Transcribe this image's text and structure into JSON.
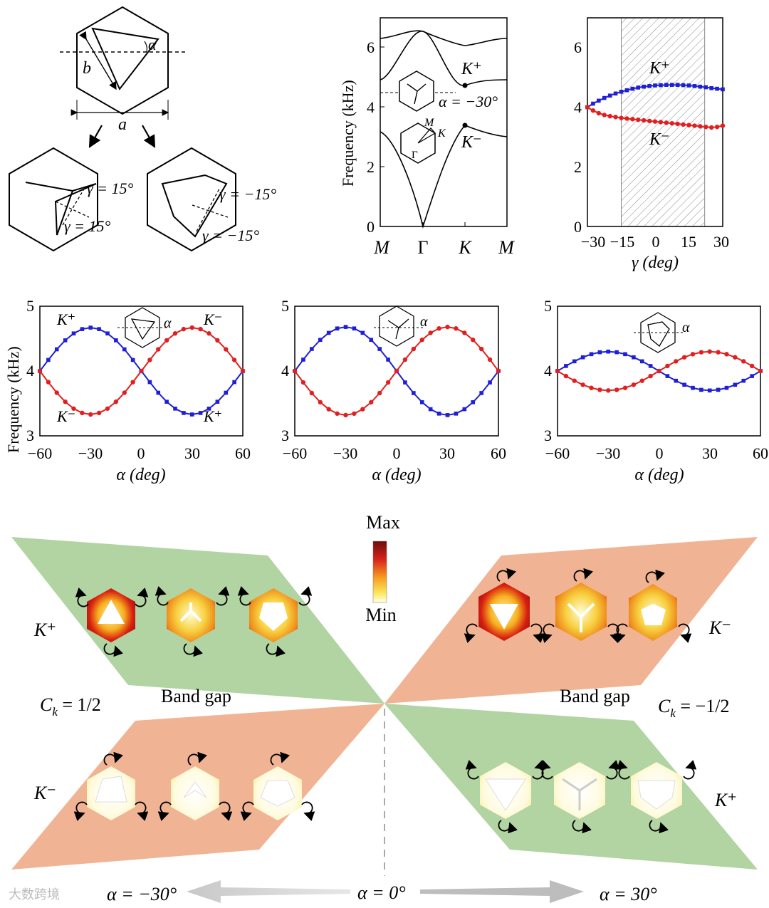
{
  "colors": {
    "blue": "#1f1fd6",
    "red": "#e02020",
    "green": "#a9cf98",
    "salmon": "#eeac88",
    "hatch": "#888888"
  },
  "geometry_panel": {
    "labels": {
      "alpha": "α",
      "b": "b",
      "a": "a"
    },
    "left_child": {
      "gamma_top": "γ = 15°",
      "gamma_bottom": "γ = 15°"
    },
    "right_child": {
      "gamma_top": "γ = −15°",
      "gamma_bottom": "γ = −15°"
    }
  },
  "band_chart": {
    "ylabel": "Frequency (kHz)",
    "xticks": [
      "M",
      "Γ",
      "K",
      "M"
    ],
    "yticks": [
      "0",
      "2",
      "4",
      "6"
    ],
    "kplus": "K⁺",
    "kminus": "K⁻",
    "alpha_note": "α = −30°",
    "bz_labels": {
      "M": "M",
      "K": "K",
      "Gamma": "Γ"
    }
  },
  "chart_data": [
    {
      "type": "line",
      "id": "gamma_chart",
      "xlabel": "γ (deg)",
      "ylabel": "",
      "xlim": [
        -30,
        30
      ],
      "ylim": [
        0,
        7
      ],
      "xticks": [
        "−30",
        "−15",
        "0",
        "15",
        "30"
      ],
      "yticks": [
        "0",
        "2",
        "4",
        "6"
      ],
      "shaded_range": [
        -15,
        22
      ],
      "labels": {
        "upper": "K⁺",
        "lower": "K⁻"
      },
      "series": [
        {
          "name": "K⁺",
          "color": "blue",
          "x": [
            -30,
            -27.5,
            -25,
            -22.5,
            -20,
            -17.5,
            -15,
            -12.5,
            -10,
            -7.5,
            -5,
            -2.5,
            0,
            2.5,
            5,
            7.5,
            10,
            12.5,
            15,
            17.5,
            20,
            22.5,
            25,
            27.5,
            30
          ],
          "values": [
            4.0,
            4.12,
            4.22,
            4.31,
            4.39,
            4.46,
            4.52,
            4.57,
            4.62,
            4.66,
            4.69,
            4.71,
            4.73,
            4.74,
            4.75,
            4.75,
            4.75,
            4.74,
            4.73,
            4.71,
            4.69,
            4.67,
            4.64,
            4.62,
            4.6
          ]
        },
        {
          "name": "K⁻",
          "color": "red",
          "x": [
            -30,
            -27.5,
            -25,
            -22.5,
            -20,
            -17.5,
            -15,
            -12.5,
            -10,
            -7.5,
            -5,
            -2.5,
            0,
            2.5,
            5,
            7.5,
            10,
            12.5,
            15,
            17.5,
            20,
            22.5,
            25,
            27.5,
            30
          ],
          "values": [
            4.0,
            3.89,
            3.8,
            3.74,
            3.7,
            3.67,
            3.64,
            3.62,
            3.6,
            3.58,
            3.56,
            3.54,
            3.52,
            3.5,
            3.48,
            3.46,
            3.44,
            3.42,
            3.4,
            3.38,
            3.36,
            3.34,
            3.32,
            3.34,
            3.38
          ]
        }
      ]
    },
    {
      "type": "line",
      "id": "alpha_chart_1",
      "xlabel": "α (deg)",
      "ylabel": "Frequency (kHz)",
      "xlim": [
        -60,
        60
      ],
      "ylim": [
        3,
        5
      ],
      "xticks": [
        "−60",
        "−30",
        "0",
        "30",
        "60"
      ],
      "yticks": [
        "3",
        "4",
        "5"
      ],
      "amplitude": 0.67,
      "labels": {
        "tl": "K⁺",
        "tr": "K⁻",
        "bl": "K⁻",
        "br": "K⁺",
        "alpha": "α"
      },
      "series": [
        {
          "name": "blue",
          "color": "blue",
          "x": [
            -60,
            -55,
            -50,
            -45,
            -40,
            -35,
            -30,
            -25,
            -20,
            -15,
            -10,
            -5,
            0,
            5,
            10,
            15,
            20,
            25,
            30,
            35,
            40,
            45,
            50,
            55,
            60
          ],
          "values": [
            4.0,
            4.171,
            4.335,
            4.474,
            4.58,
            4.647,
            4.67,
            4.647,
            4.58,
            4.474,
            4.335,
            4.171,
            4.0,
            3.829,
            3.665,
            3.526,
            3.42,
            3.353,
            3.33,
            3.353,
            3.42,
            3.526,
            3.665,
            3.829,
            4.0
          ]
        },
        {
          "name": "red",
          "color": "red",
          "x": [
            -60,
            -55,
            -50,
            -45,
            -40,
            -35,
            -30,
            -25,
            -20,
            -15,
            -10,
            -5,
            0,
            5,
            10,
            15,
            20,
            25,
            30,
            35,
            40,
            45,
            50,
            55,
            60
          ],
          "values": [
            4.0,
            3.829,
            3.665,
            3.526,
            3.42,
            3.353,
            3.33,
            3.353,
            3.42,
            3.526,
            3.665,
            3.829,
            4.0,
            4.171,
            4.335,
            4.474,
            4.58,
            4.647,
            4.67,
            4.647,
            4.58,
            4.474,
            4.335,
            4.171,
            4.0
          ]
        }
      ]
    },
    {
      "type": "line",
      "id": "alpha_chart_2",
      "xlabel": "α (deg)",
      "ylabel": "",
      "xlim": [
        -60,
        60
      ],
      "ylim": [
        3,
        5
      ],
      "xticks": [
        "−60",
        "−30",
        "0",
        "30",
        "60"
      ],
      "yticks": [
        "3",
        "4",
        "5"
      ],
      "amplitude": 0.68,
      "labels": {
        "alpha": "α"
      },
      "series": [
        {
          "name": "blue",
          "color": "blue",
          "x": [
            -60,
            -55,
            -50,
            -45,
            -40,
            -35,
            -30,
            -25,
            -20,
            -15,
            -10,
            -5,
            0,
            5,
            10,
            15,
            20,
            25,
            30,
            35,
            40,
            45,
            50,
            55,
            60
          ],
          "values": [
            4.0,
            4.176,
            4.34,
            4.481,
            4.589,
            4.657,
            4.68,
            4.657,
            4.589,
            4.481,
            4.34,
            4.176,
            4.0,
            3.824,
            3.66,
            3.519,
            3.411,
            3.343,
            3.32,
            3.343,
            3.411,
            3.519,
            3.66,
            3.824,
            4.0
          ]
        },
        {
          "name": "red",
          "color": "red",
          "x": [
            -60,
            -55,
            -50,
            -45,
            -40,
            -35,
            -30,
            -25,
            -20,
            -15,
            -10,
            -5,
            0,
            5,
            10,
            15,
            20,
            25,
            30,
            35,
            40,
            45,
            50,
            55,
            60
          ],
          "values": [
            4.0,
            3.824,
            3.66,
            3.519,
            3.411,
            3.343,
            3.32,
            3.343,
            3.411,
            3.519,
            3.66,
            3.824,
            4.0,
            4.176,
            4.34,
            4.481,
            4.589,
            4.657,
            4.68,
            4.657,
            4.589,
            4.481,
            4.34,
            4.176,
            4.0
          ]
        }
      ]
    },
    {
      "type": "line",
      "id": "alpha_chart_3",
      "xlabel": "α (deg)",
      "ylabel": "",
      "xlim": [
        -60,
        60
      ],
      "ylim": [
        3,
        5
      ],
      "xticks": [
        "−60",
        "−30",
        "0",
        "30",
        "60"
      ],
      "yticks": [
        "3",
        "4",
        "5"
      ],
      "amplitude": 0.3,
      "labels": {
        "alpha": "α"
      },
      "series": [
        {
          "name": "blue",
          "color": "blue",
          "x": [
            -60,
            -55,
            -50,
            -45,
            -40,
            -35,
            -30,
            -25,
            -20,
            -15,
            -10,
            -5,
            0,
            5,
            10,
            15,
            20,
            25,
            30,
            35,
            40,
            45,
            50,
            55,
            60
          ],
          "values": [
            4.0,
            4.078,
            4.15,
            4.212,
            4.26,
            4.29,
            4.3,
            4.29,
            4.26,
            4.212,
            4.15,
            4.078,
            4.0,
            3.922,
            3.85,
            3.788,
            3.74,
            3.71,
            3.7,
            3.71,
            3.74,
            3.788,
            3.85,
            3.922,
            4.0
          ]
        },
        {
          "name": "red",
          "color": "red",
          "x": [
            -60,
            -55,
            -50,
            -45,
            -40,
            -35,
            -30,
            -25,
            -20,
            -15,
            -10,
            -5,
            0,
            5,
            10,
            15,
            20,
            25,
            30,
            35,
            40,
            45,
            50,
            55,
            60
          ],
          "values": [
            4.0,
            3.922,
            3.85,
            3.788,
            3.74,
            3.71,
            3.7,
            3.71,
            3.74,
            3.788,
            3.85,
            3.922,
            4.0,
            4.078,
            4.15,
            4.212,
            4.26,
            4.29,
            4.3,
            4.29,
            4.26,
            4.212,
            4.15,
            4.078,
            4.0
          ]
        }
      ]
    }
  ],
  "field_panel": {
    "colorbar": {
      "max": "Max",
      "min": "Min"
    },
    "left": {
      "kplus": "K⁺",
      "kminus": "K⁻",
      "ck": "C",
      "ck_sub": "k",
      "ck_value": " = 1/2",
      "band_gap": "Band gap"
    },
    "right": {
      "kplus": "K⁺",
      "kminus": "K⁻",
      "ck": "C",
      "ck_sub": "k",
      "ck_value": " = −1/2",
      "band_gap": "Band gap"
    },
    "arrows": {
      "left": "α = −30°",
      "center": "α = 0°",
      "right": "α = 30°"
    }
  },
  "watermark": "大数跨境"
}
